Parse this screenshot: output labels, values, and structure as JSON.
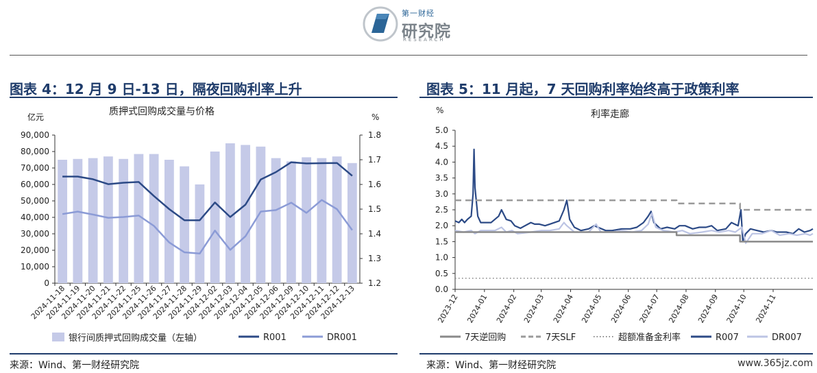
{
  "logo": {
    "cn_small": "第一财经",
    "cn_large": "研究院",
    "en": "RESEARCH"
  },
  "left": {
    "panel_title": "图表 4：12 月 9 日-13 日，隔夜回购利率上升",
    "source": "来源：Wind、第一财经研究院"
  },
  "right": {
    "panel_title": "图表 5：11 月起，7 天回购利率始终高于政策利率",
    "source": "来源：Wind、第一财经研究院"
  },
  "watermark": "www.365jz.com",
  "chart_data": [
    {
      "type": "bar",
      "title": "质押式回购成交量与价格",
      "ylabel_left": "亿元",
      "ylabel_right": "%",
      "ylim_left": [
        0,
        90000
      ],
      "ylim_right": [
        1.2,
        1.8
      ],
      "left_ticks": [
        "0",
        "10,000",
        "20,000",
        "30,000",
        "40,000",
        "50,000",
        "60,000",
        "70,000",
        "80,000",
        "90,000"
      ],
      "right_ticks": [
        "1.2",
        "1.3",
        "1.4",
        "1.5",
        "1.6",
        "1.7",
        "1.8"
      ],
      "categories": [
        "2024-11-18",
        "2024-11-19",
        "2024-11-20",
        "2024-11-21",
        "2024-11-22",
        "2024-11-25",
        "2024-11-26",
        "2024-11-27",
        "2024-11-28",
        "2024-11-29",
        "2024-12-02",
        "2024-12-03",
        "2024-12-04",
        "2024-12-05",
        "2024-12-06",
        "2024-12-09",
        "2024-12-10",
        "2024-12-11",
        "2024-12-12",
        "2024-12-13"
      ],
      "series": [
        {
          "name": "银行间质押式回购成交量（左轴）",
          "kind": "bar",
          "axis": "left",
          "color": "#c5cae8",
          "values": [
            75000,
            75500,
            76000,
            77000,
            75500,
            78500,
            78500,
            75000,
            71000,
            60000,
            80000,
            85000,
            84000,
            83000,
            76000,
            74000,
            76500,
            76000,
            77000,
            73000
          ]
        },
        {
          "name": "R001",
          "kind": "line",
          "axis": "right",
          "color": "#2c4a86",
          "values": [
            1.632,
            1.632,
            1.621,
            1.601,
            1.607,
            1.61,
            1.553,
            1.5,
            1.455,
            1.455,
            1.527,
            1.468,
            1.518,
            1.62,
            1.65,
            1.69,
            1.685,
            1.686,
            1.687,
            1.635
          ]
        },
        {
          "name": "DR001",
          "kind": "line",
          "axis": "right",
          "color": "#8b9bd6",
          "values": [
            1.48,
            1.49,
            1.478,
            1.465,
            1.468,
            1.474,
            1.432,
            1.365,
            1.325,
            1.32,
            1.413,
            1.335,
            1.39,
            1.49,
            1.496,
            1.526,
            1.485,
            1.537,
            1.5,
            1.415
          ]
        }
      ],
      "grid": false,
      "legend": "bottom"
    },
    {
      "type": "line",
      "title": "利率走廊",
      "ylabel": "%",
      "ylim": [
        0,
        5
      ],
      "y_ticks": [
        "0.0",
        "0.5",
        "1.0",
        "1.5",
        "2.0",
        "2.5",
        "3.0",
        "3.5",
        "4.0",
        "4.5",
        "5.0"
      ],
      "x_ticks": [
        "2023-12",
        "2024-01",
        "2024-02",
        "2024-03",
        "2024-04",
        "2024-05",
        "2024-06",
        "2024-07",
        "2024-08",
        "2024-09",
        "2024-10",
        "2024-11"
      ],
      "x_range": [
        "2023-12-01",
        "2024-12-13"
      ],
      "series": [
        {
          "name": "7天逆回购",
          "style": "solid",
          "color": "#8a8a8a",
          "points": [
            [
              "2023-12-01",
              1.8
            ],
            [
              "2024-07-22",
              1.8
            ],
            [
              "2024-07-22",
              1.7
            ],
            [
              "2024-09-27",
              1.7
            ],
            [
              "2024-09-27",
              1.5
            ],
            [
              "2024-12-13",
              1.5
            ]
          ]
        },
        {
          "name": "7天SLF",
          "style": "dashed",
          "color": "#9a9a9a",
          "points": [
            [
              "2023-12-01",
              2.8
            ],
            [
              "2024-07-22",
              2.8
            ],
            [
              "2024-07-22",
              2.7
            ],
            [
              "2024-09-27",
              2.7
            ],
            [
              "2024-09-27",
              2.5
            ],
            [
              "2024-12-13",
              2.5
            ]
          ]
        },
        {
          "name": "超额准备金利率",
          "style": "dotted",
          "color": "#8a8a8a",
          "points": [
            [
              "2023-12-01",
              0.35
            ],
            [
              "2024-12-13",
              0.35
            ]
          ]
        },
        {
          "name": "R007",
          "style": "solid",
          "color": "#2c4a86",
          "points": [
            [
              "2023-12-01",
              2.15
            ],
            [
              "2023-12-05",
              2.1
            ],
            [
              "2023-12-08",
              2.2
            ],
            [
              "2023-12-11",
              2.1
            ],
            [
              "2023-12-14",
              2.2
            ],
            [
              "2023-12-18",
              2.3
            ],
            [
              "2023-12-20",
              3.0
            ],
            [
              "2023-12-21",
              4.4
            ],
            [
              "2023-12-22",
              3.2
            ],
            [
              "2023-12-25",
              2.3
            ],
            [
              "2023-12-28",
              2.1
            ],
            [
              "2024-01-03",
              2.1
            ],
            [
              "2024-01-08",
              2.1
            ],
            [
              "2024-01-12",
              2.2
            ],
            [
              "2024-01-16",
              2.3
            ],
            [
              "2024-01-19",
              2.5
            ],
            [
              "2024-01-24",
              2.2
            ],
            [
              "2024-01-29",
              2.15
            ],
            [
              "2024-02-02",
              2.0
            ],
            [
              "2024-02-08",
              1.92
            ],
            [
              "2024-02-19",
              2.1
            ],
            [
              "2024-02-23",
              2.05
            ],
            [
              "2024-02-28",
              2.05
            ],
            [
              "2024-03-05",
              2.0
            ],
            [
              "2024-03-10",
              2.05
            ],
            [
              "2024-03-15",
              2.1
            ],
            [
              "2024-03-20",
              2.15
            ],
            [
              "2024-03-25",
              2.5
            ],
            [
              "2024-03-28",
              2.8
            ],
            [
              "2024-03-31",
              2.2
            ],
            [
              "2024-04-05",
              1.95
            ],
            [
              "2024-04-12",
              1.85
            ],
            [
              "2024-04-20",
              1.9
            ],
            [
              "2024-04-26",
              2.0
            ],
            [
              "2024-04-30",
              1.95
            ],
            [
              "2024-05-08",
              1.85
            ],
            [
              "2024-05-15",
              1.85
            ],
            [
              "2024-05-25",
              1.9
            ],
            [
              "2024-06-03",
              1.9
            ],
            [
              "2024-06-10",
              1.95
            ],
            [
              "2024-06-17",
              2.1
            ],
            [
              "2024-06-22",
              2.3
            ],
            [
              "2024-06-25",
              2.45
            ],
            [
              "2024-06-28",
              2.1
            ],
            [
              "2024-07-05",
              1.9
            ],
            [
              "2024-07-12",
              1.95
            ],
            [
              "2024-07-20",
              1.9
            ],
            [
              "2024-07-25",
              2.0
            ],
            [
              "2024-07-31",
              2.0
            ],
            [
              "2024-08-08",
              1.9
            ],
            [
              "2024-08-15",
              1.95
            ],
            [
              "2024-08-22",
              1.95
            ],
            [
              "2024-08-28",
              2.0
            ],
            [
              "2024-09-03",
              1.85
            ],
            [
              "2024-09-12",
              1.9
            ],
            [
              "2024-09-18",
              2.1
            ],
            [
              "2024-09-25",
              2.0
            ],
            [
              "2024-09-28",
              2.5
            ],
            [
              "2024-09-30",
              1.5
            ],
            [
              "2024-10-03",
              1.75
            ],
            [
              "2024-10-08",
              1.9
            ],
            [
              "2024-10-15",
              1.85
            ],
            [
              "2024-10-22",
              1.8
            ],
            [
              "2024-10-30",
              1.85
            ],
            [
              "2024-11-05",
              1.8
            ],
            [
              "2024-11-15",
              1.8
            ],
            [
              "2024-11-22",
              1.75
            ],
            [
              "2024-11-28",
              1.9
            ],
            [
              "2024-12-04",
              1.8
            ],
            [
              "2024-12-10",
              1.85
            ],
            [
              "2024-12-13",
              1.9
            ]
          ]
        },
        {
          "name": "DR007",
          "style": "solid",
          "color": "#bcc4e4",
          "points": [
            [
              "2023-12-01",
              1.85
            ],
            [
              "2023-12-10",
              1.8
            ],
            [
              "2023-12-18",
              1.85
            ],
            [
              "2023-12-22",
              1.75
            ],
            [
              "2023-12-28",
              1.85
            ],
            [
              "2024-01-05",
              1.85
            ],
            [
              "2024-01-12",
              1.85
            ],
            [
              "2024-01-19",
              1.95
            ],
            [
              "2024-01-24",
              1.8
            ],
            [
              "2024-01-30",
              1.85
            ],
            [
              "2024-02-05",
              1.75
            ],
            [
              "2024-02-19",
              1.8
            ],
            [
              "2024-03-01",
              1.85
            ],
            [
              "2024-03-10",
              1.85
            ],
            [
              "2024-03-20",
              1.9
            ],
            [
              "2024-03-25",
              2.1
            ],
            [
              "2024-03-28",
              2.0
            ],
            [
              "2024-04-05",
              1.8
            ],
            [
              "2024-04-20",
              1.8
            ],
            [
              "2024-04-28",
              2.05
            ],
            [
              "2024-05-03",
              1.8
            ],
            [
              "2024-05-15",
              1.8
            ],
            [
              "2024-05-25",
              1.85
            ],
            [
              "2024-06-05",
              1.8
            ],
            [
              "2024-06-15",
              1.85
            ],
            [
              "2024-06-22",
              2.05
            ],
            [
              "2024-06-26",
              2.4
            ],
            [
              "2024-06-30",
              1.95
            ],
            [
              "2024-07-08",
              1.85
            ],
            [
              "2024-07-20",
              1.8
            ],
            [
              "2024-07-28",
              1.85
            ],
            [
              "2024-08-05",
              1.75
            ],
            [
              "2024-08-18",
              1.8
            ],
            [
              "2024-08-28",
              1.85
            ],
            [
              "2024-09-05",
              1.8
            ],
            [
              "2024-09-15",
              1.85
            ],
            [
              "2024-09-22",
              1.8
            ],
            [
              "2024-09-29",
              1.95
            ],
            [
              "2024-10-03",
              1.45
            ],
            [
              "2024-10-10",
              1.75
            ],
            [
              "2024-10-20",
              1.75
            ],
            [
              "2024-10-30",
              1.85
            ],
            [
              "2024-11-08",
              1.7
            ],
            [
              "2024-11-18",
              1.75
            ],
            [
              "2024-11-26",
              1.7
            ],
            [
              "2024-12-05",
              1.75
            ],
            [
              "2024-12-10",
              1.7
            ],
            [
              "2024-12-13",
              1.75
            ]
          ]
        }
      ],
      "grid": false,
      "legend": "bottom"
    }
  ]
}
